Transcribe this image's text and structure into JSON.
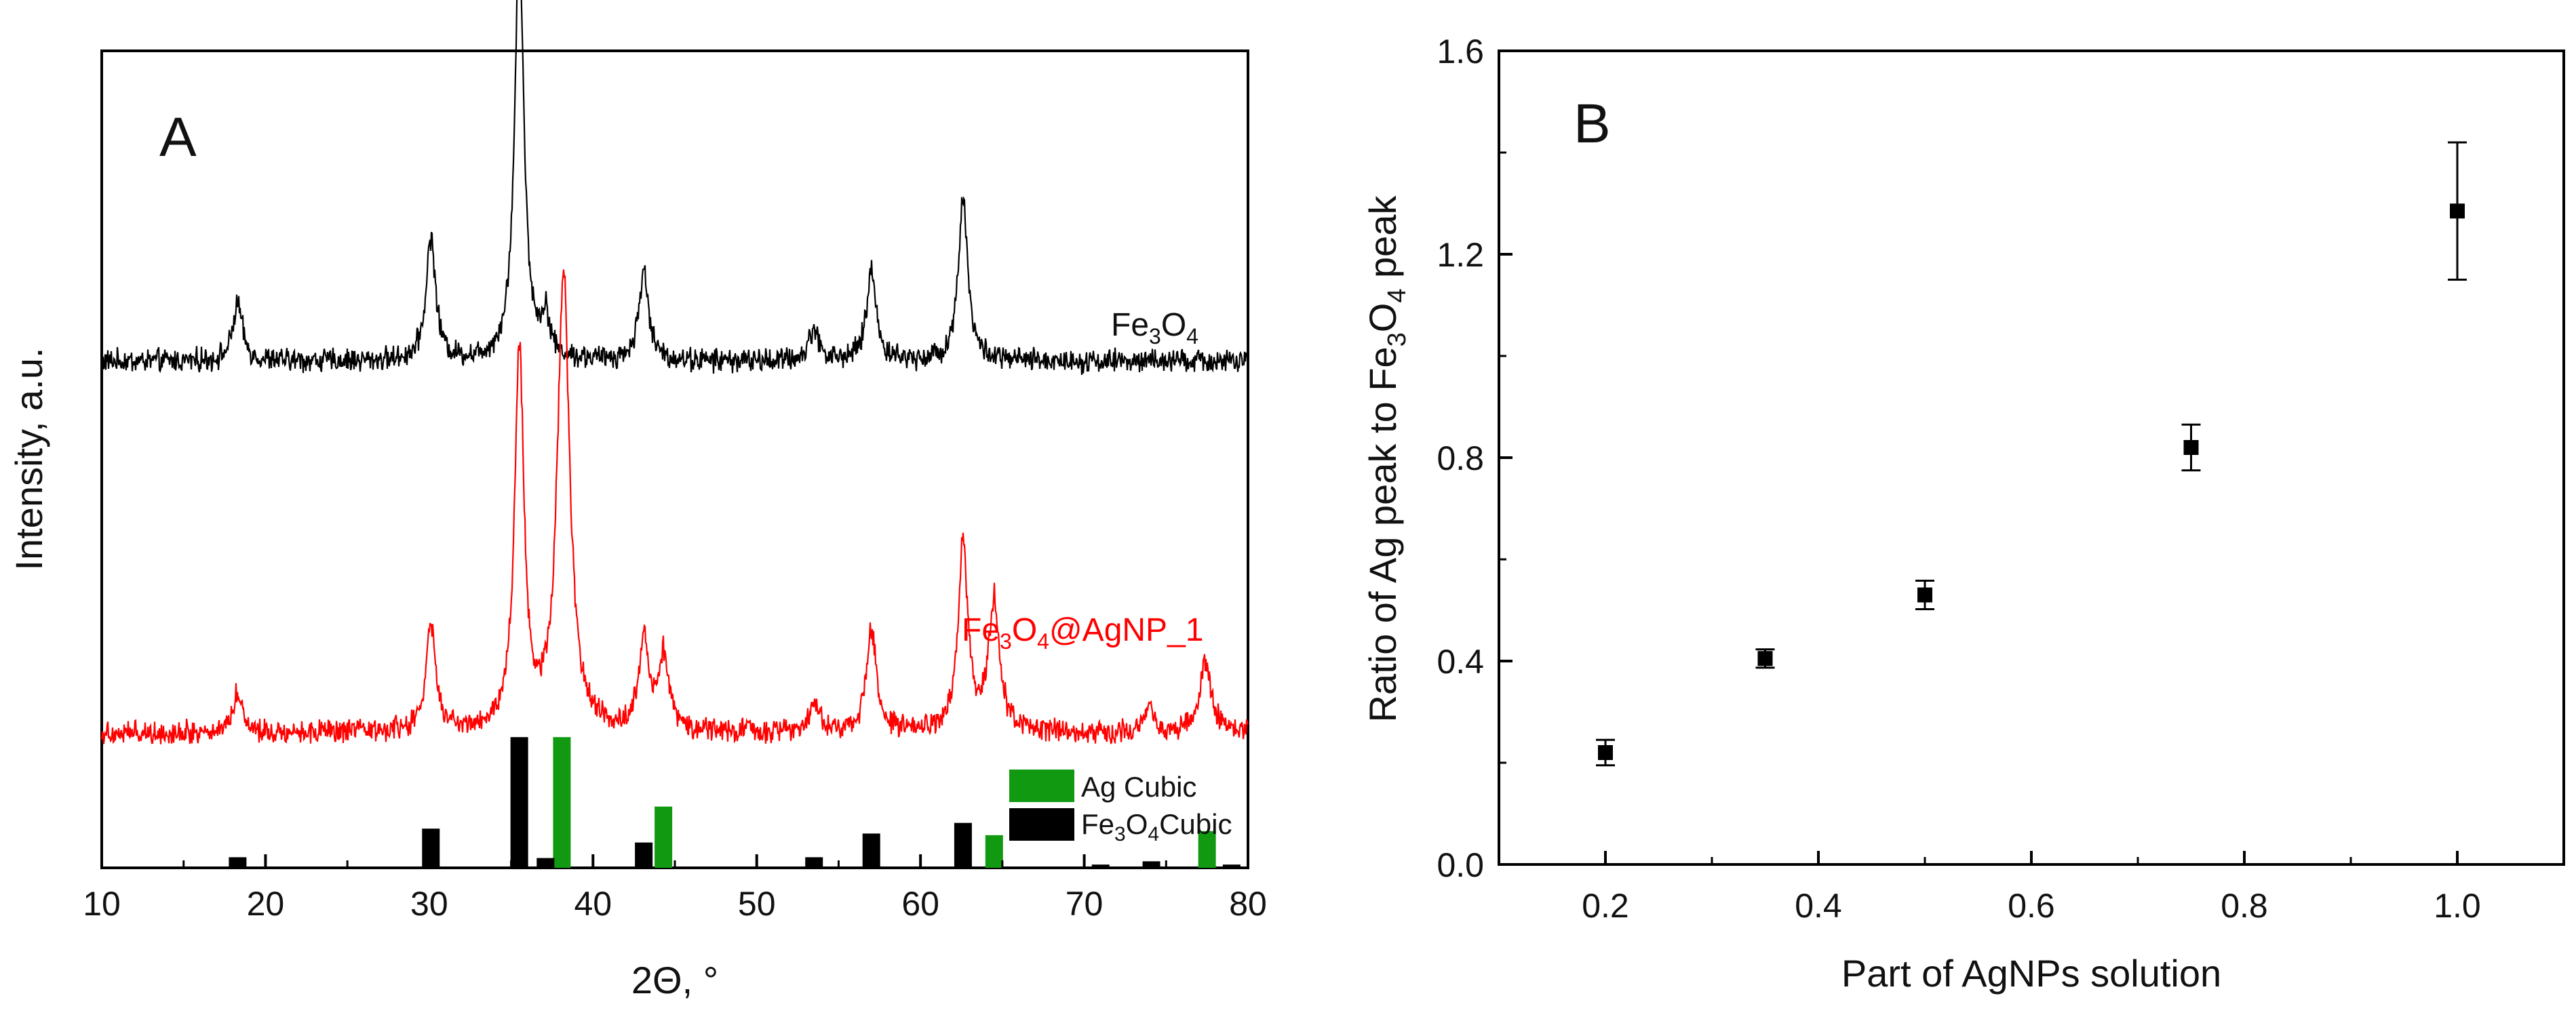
{
  "chart_data": [
    {
      "panel": "A",
      "type": "line",
      "xlabel": "2Θ, °",
      "ylabel": "Intensity, a.u.",
      "xlim": [
        10,
        80
      ],
      "xticks": [
        10,
        20,
        30,
        40,
        50,
        60,
        70,
        80
      ],
      "yticks": [],
      "series": [
        {
          "name": "Fe3O4",
          "label_parts": [
            "Fe",
            "3",
            "O",
            "4"
          ],
          "color": "#000000",
          "baseline": 0.62,
          "noise": 0.022,
          "peaks": [
            {
              "x": 18.3,
              "h": 0.07,
              "w": 0.35
            },
            {
              "x": 30.1,
              "h": 0.15,
              "w": 0.35
            },
            {
              "x": 35.5,
              "h": 0.5,
              "w": 0.35
            },
            {
              "x": 37.1,
              "h": 0.05,
              "w": 0.3
            },
            {
              "x": 43.1,
              "h": 0.11,
              "w": 0.35
            },
            {
              "x": 53.5,
              "h": 0.04,
              "w": 0.35
            },
            {
              "x": 57.0,
              "h": 0.11,
              "w": 0.35
            },
            {
              "x": 62.6,
              "h": 0.2,
              "w": 0.35
            }
          ]
        },
        {
          "name": "Fe3O4@AgNP_1",
          "label_parts": [
            "Fe",
            "3",
            "O",
            "4",
            "@AgNP_1"
          ],
          "color": "#ff0000",
          "baseline": 0.165,
          "noise": 0.022,
          "peaks": [
            {
              "x": 18.3,
              "h": 0.05,
              "w": 0.35
            },
            {
              "x": 30.1,
              "h": 0.13,
              "w": 0.35
            },
            {
              "x": 35.5,
              "h": 0.46,
              "w": 0.35
            },
            {
              "x": 38.2,
              "h": 0.56,
              "w": 0.45
            },
            {
              "x": 43.1,
              "h": 0.11,
              "w": 0.35
            },
            {
              "x": 44.3,
              "h": 0.09,
              "w": 0.4
            },
            {
              "x": 53.5,
              "h": 0.04,
              "w": 0.35
            },
            {
              "x": 57.0,
              "h": 0.13,
              "w": 0.35
            },
            {
              "x": 62.6,
              "h": 0.23,
              "w": 0.35
            },
            {
              "x": 64.5,
              "h": 0.16,
              "w": 0.4
            },
            {
              "x": 74.0,
              "h": 0.03,
              "w": 0.35
            },
            {
              "x": 77.4,
              "h": 0.09,
              "w": 0.4
            }
          ]
        }
      ],
      "reference_bars": [
        {
          "name": "Ag Cubic",
          "color": "#119911",
          "peaks": [
            {
              "x": 38.1,
              "h": 0.16
            },
            {
              "x": 44.3,
              "h": 0.075
            },
            {
              "x": 64.5,
              "h": 0.04
            },
            {
              "x": 77.5,
              "h": 0.045
            }
          ]
        },
        {
          "name": "Fe3O4Cubic",
          "label_parts": [
            "Fe",
            "3",
            "O",
            "4",
            "Cubic"
          ],
          "color": "#000000",
          "peaks": [
            {
              "x": 18.3,
              "h": 0.013
            },
            {
              "x": 30.1,
              "h": 0.048
            },
            {
              "x": 35.5,
              "h": 0.16
            },
            {
              "x": 37.1,
              "h": 0.012
            },
            {
              "x": 43.1,
              "h": 0.031
            },
            {
              "x": 53.5,
              "h": 0.013
            },
            {
              "x": 57.0,
              "h": 0.042
            },
            {
              "x": 62.6,
              "h": 0.055
            },
            {
              "x": 71.0,
              "h": 0.004
            },
            {
              "x": 74.1,
              "h": 0.008
            },
            {
              "x": 79.0,
              "h": 0.004
            }
          ]
        }
      ],
      "legend": {
        "entries": [
          {
            "label": "Ag Cubic",
            "color": "#119911"
          },
          {
            "label_parts": [
              "Fe",
              "3",
              "O",
              "4",
              "Cubic"
            ],
            "color": "#000000"
          }
        ],
        "position": "lower-right"
      }
    },
    {
      "panel": "B",
      "type": "scatter",
      "xlabel": "Part of AgNPs solution",
      "ylabel_parts": [
        "Ratio of Ag peak to Fe",
        "3",
        "O",
        "4",
        " peak"
      ],
      "xlim": [
        0.1,
        1.1
      ],
      "ylim": [
        0.0,
        1.6
      ],
      "xticks": [
        0.2,
        0.4,
        0.6,
        0.8,
        1.0
      ],
      "yticks": [
        0.0,
        0.4,
        0.8,
        1.2,
        1.6
      ],
      "points": [
        {
          "x": 0.2,
          "y": 0.22,
          "err": 0.025
        },
        {
          "x": 0.35,
          "y": 0.405,
          "err": 0.018
        },
        {
          "x": 0.5,
          "y": 0.53,
          "err": 0.028
        },
        {
          "x": 0.75,
          "y": 0.82,
          "err": 0.045
        },
        {
          "x": 1.0,
          "y": 1.285,
          "err": 0.135
        }
      ],
      "marker": "square",
      "color": "#000000"
    }
  ],
  "panel_labels": {
    "a": "A",
    "b": "B"
  },
  "xtick_labels_a": [
    "10",
    "20",
    "30",
    "40",
    "50",
    "60",
    "70",
    "80"
  ],
  "xtick_labels_b": [
    "0.2",
    "0.4",
    "0.6",
    "0.8",
    "1.0"
  ],
  "ytick_labels_b": [
    "0.0",
    "0.4",
    "0.8",
    "1.2",
    "1.6"
  ]
}
